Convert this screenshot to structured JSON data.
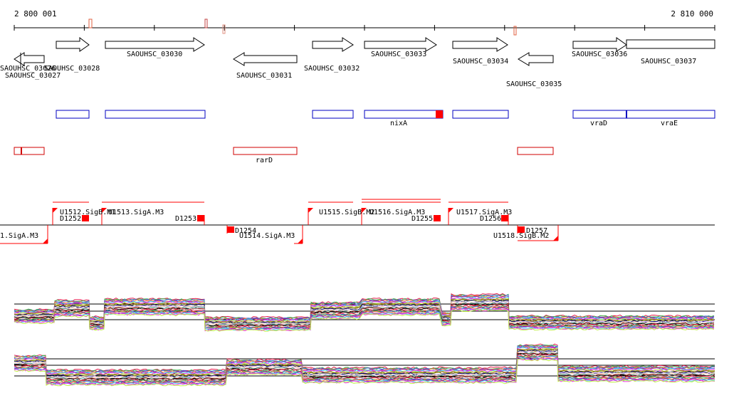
{
  "ruler": {
    "start_label": "2 800 001",
    "end_label": "2 810 000"
  },
  "genes": [
    {
      "id": "SAOUHSC_03026",
      "strand": "-",
      "label": "SAOUHSC_03026"
    },
    {
      "id": "SAOUHSC_03027",
      "strand": "-",
      "label": "SAOUHSC_03027"
    },
    {
      "id": "SAOUHSC_03028",
      "strand": "+",
      "label": "SAOUHSC_03028"
    },
    {
      "id": "SAOUHSC_03030",
      "strand": "+",
      "label": "SAOUHSC_03030"
    },
    {
      "id": "SAOUHSC_03031",
      "strand": "-",
      "label": "SAOUHSC_03031"
    },
    {
      "id": "SAOUHSC_03032",
      "strand": "+",
      "label": "SAOUHSC_03032"
    },
    {
      "id": "SAOUHSC_03033",
      "strand": "+",
      "label": "SAOUHSC_03033"
    },
    {
      "id": "SAOUHSC_03034",
      "strand": "+",
      "label": "SAOUHSC_03034"
    },
    {
      "id": "SAOUHSC_03035",
      "strand": "-",
      "label": "SAOUHSC_03035"
    },
    {
      "id": "SAOUHSC_03036",
      "strand": "+",
      "label": "SAOUHSC_03036"
    },
    {
      "id": "SAOUHSC_03037",
      "strand": "+",
      "label": "SAOUHSC_03037"
    }
  ],
  "blue_features": [
    {
      "label": ""
    },
    {
      "label": ""
    },
    {
      "label": ""
    },
    {
      "label": "nixA"
    },
    {
      "label": ""
    },
    {
      "label": "vraD"
    },
    {
      "label": "vraE"
    }
  ],
  "red_features": [
    {
      "label": ""
    },
    {
      "label": "rarD"
    },
    {
      "label": ""
    }
  ],
  "segment_labels": [
    "1.SigA.M3",
    "U1512.SigB.M1",
    "D1252",
    "U1513.SigA.M3",
    "D1253",
    "D1254",
    "U1514.SigA.M3",
    "U1515.SigB.M2",
    "U1516.SigA.M3",
    "D1255",
    "U1517.SigA.M3",
    "D1256",
    "D1257",
    "U1518.SigB.M2"
  ],
  "colors": {
    "gene_outline": "#000000",
    "blue_feature": "#0000c0",
    "red_feature": "#d00000",
    "segment": "#ff0000",
    "track_palette": [
      "#e6194b",
      "#3cb44b",
      "#4363d8",
      "#f58231",
      "#911eb4",
      "#42d4f4",
      "#f032e6",
      "#bfef45",
      "#9a6324",
      "#808000",
      "#000075",
      "#a9a9a9",
      "#e6beff",
      "#ffd8b1",
      "#469990",
      "#800000",
      "#000000",
      "#fabebe"
    ]
  }
}
